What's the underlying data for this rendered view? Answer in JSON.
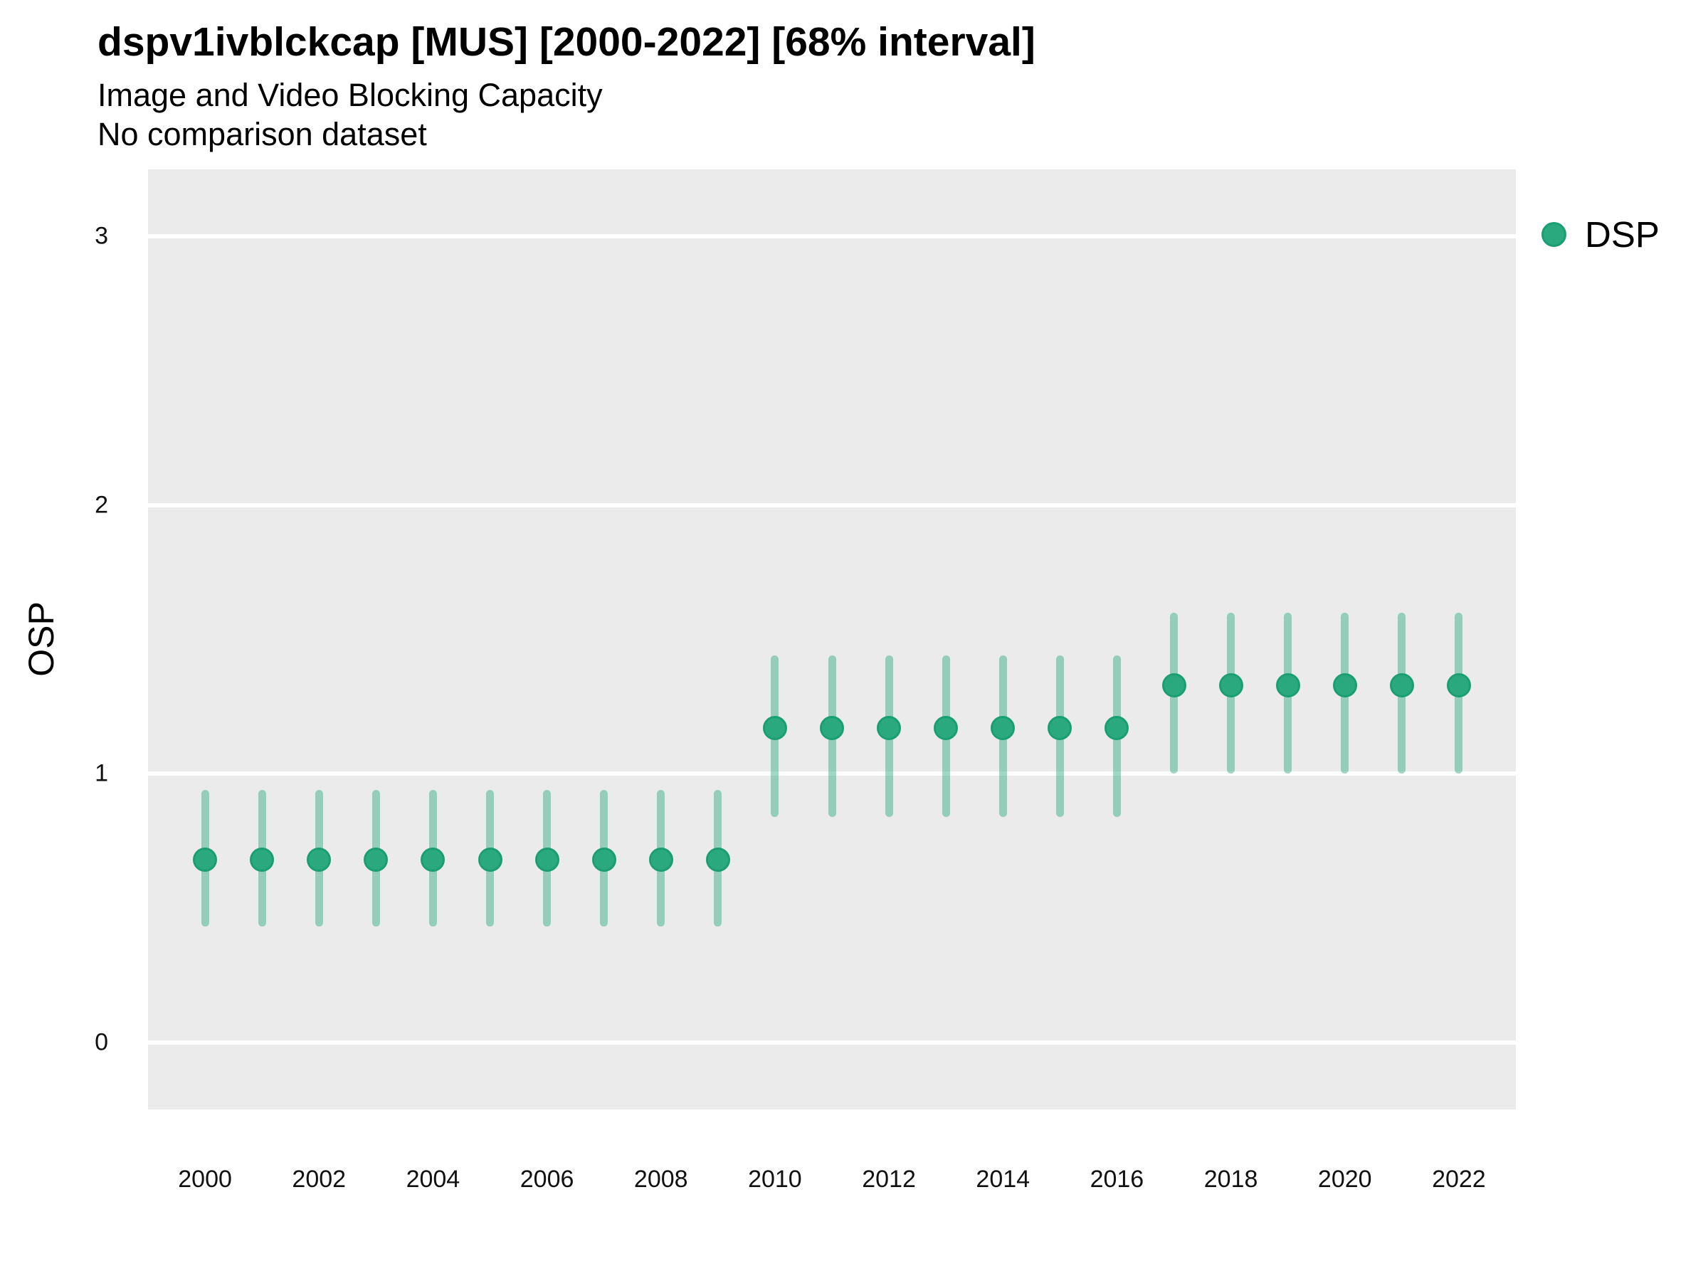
{
  "header": {
    "title": "dspv1ivblckcap [MUS] [2000-2022] [68% interval]",
    "subtitle": "Image and Video Blocking Capacity",
    "note": "No comparison dataset"
  },
  "legend": {
    "label": "DSP"
  },
  "y_axis": {
    "title": "OSP",
    "tick_labels": [
      "3",
      "2",
      "1",
      "0"
    ],
    "tick_values": [
      3,
      2,
      1,
      0
    ],
    "range": [
      -0.25,
      3.25
    ]
  },
  "x_axis": {
    "tick_labels": [
      "2000",
      "2002",
      "2004",
      "2006",
      "2008",
      "2010",
      "2012",
      "2014",
      "2016",
      "2018",
      "2020",
      "2022"
    ],
    "tick_values": [
      2000,
      2002,
      2004,
      2006,
      2008,
      2010,
      2012,
      2014,
      2016,
      2018,
      2020,
      2022
    ],
    "range": [
      1999,
      2023
    ]
  },
  "colors": {
    "point_fill": "#2aa87e",
    "point_stroke": "#1b9e71",
    "interval": "rgba(42,168,126,0.45)",
    "panel_bg": "#ebebeb",
    "gridline": "#ffffff",
    "tick_text": "#111111",
    "title_text": "#000000"
  },
  "chart_data": {
    "type": "pointrange",
    "title": "dspv1ivblckcap [MUS] [2000-2022] [68% interval]",
    "subtitle": "Image and Video Blocking Capacity",
    "note": "No comparison dataset",
    "interval_level": "68%",
    "xlabel": "",
    "ylabel": "OSP",
    "xlim": [
      1999,
      2023
    ],
    "ylim": [
      -0.25,
      3.25
    ],
    "grid": "major-horizontal white on gray panel",
    "legend_position": "right-top",
    "series": [
      {
        "name": "DSP",
        "points": [
          {
            "year": 2000,
            "value": 0.68,
            "lower": 0.43,
            "upper": 0.94
          },
          {
            "year": 2001,
            "value": 0.68,
            "lower": 0.43,
            "upper": 0.94
          },
          {
            "year": 2002,
            "value": 0.68,
            "lower": 0.43,
            "upper": 0.94
          },
          {
            "year": 2003,
            "value": 0.68,
            "lower": 0.43,
            "upper": 0.94
          },
          {
            "year": 2004,
            "value": 0.68,
            "lower": 0.43,
            "upper": 0.94
          },
          {
            "year": 2005,
            "value": 0.68,
            "lower": 0.43,
            "upper": 0.94
          },
          {
            "year": 2006,
            "value": 0.68,
            "lower": 0.43,
            "upper": 0.94
          },
          {
            "year": 2007,
            "value": 0.68,
            "lower": 0.43,
            "upper": 0.94
          },
          {
            "year": 2008,
            "value": 0.68,
            "lower": 0.43,
            "upper": 0.94
          },
          {
            "year": 2009,
            "value": 0.68,
            "lower": 0.43,
            "upper": 0.94
          },
          {
            "year": 2010,
            "value": 1.17,
            "lower": 0.84,
            "upper": 1.44
          },
          {
            "year": 2011,
            "value": 1.17,
            "lower": 0.84,
            "upper": 1.44
          },
          {
            "year": 2012,
            "value": 1.17,
            "lower": 0.84,
            "upper": 1.44
          },
          {
            "year": 2013,
            "value": 1.17,
            "lower": 0.84,
            "upper": 1.44
          },
          {
            "year": 2014,
            "value": 1.17,
            "lower": 0.84,
            "upper": 1.44
          },
          {
            "year": 2015,
            "value": 1.17,
            "lower": 0.84,
            "upper": 1.44
          },
          {
            "year": 2016,
            "value": 1.17,
            "lower": 0.84,
            "upper": 1.44
          },
          {
            "year": 2017,
            "value": 1.33,
            "lower": 1.0,
            "upper": 1.6
          },
          {
            "year": 2018,
            "value": 1.33,
            "lower": 1.0,
            "upper": 1.6
          },
          {
            "year": 2019,
            "value": 1.33,
            "lower": 1.0,
            "upper": 1.6
          },
          {
            "year": 2020,
            "value": 1.33,
            "lower": 1.0,
            "upper": 1.6
          },
          {
            "year": 2021,
            "value": 1.33,
            "lower": 1.0,
            "upper": 1.6
          },
          {
            "year": 2022,
            "value": 1.33,
            "lower": 1.0,
            "upper": 1.6
          }
        ]
      }
    ]
  }
}
